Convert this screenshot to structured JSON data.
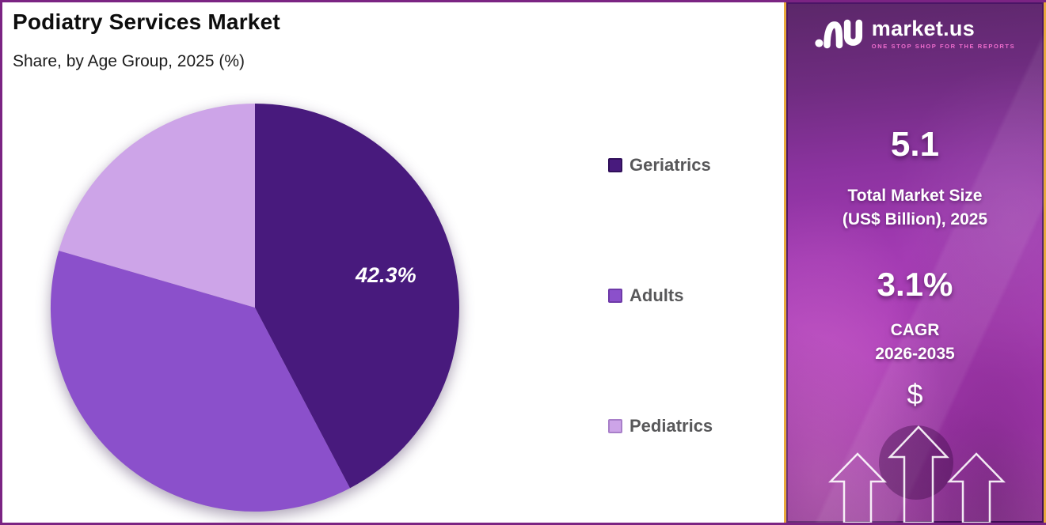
{
  "chart_data": {
    "type": "pie",
    "title": "Podiatry Services Market",
    "subtitle": "Share, by Age Group, 2025 (%)",
    "unit": "%",
    "start_angle_deg": 0,
    "direction": "clockwise",
    "legend_position": "right",
    "slices": [
      {
        "label": "Geriatrics",
        "value": 42.3,
        "data_label": "42.3%",
        "color": "#481A7D",
        "swatch_border": "#30105A"
      },
      {
        "label": "Adults",
        "value": 37.2,
        "data_label": "",
        "color": "#8B50CB",
        "swatch_border": "#6E3AA8"
      },
      {
        "label": "Pediatrics",
        "value": 20.5,
        "data_label": "",
        "color": "#CDA4E8",
        "swatch_border": "#A87FC9"
      }
    ]
  },
  "sidebar": {
    "brand": {
      "name": "market.us",
      "tagline": "ONE STOP SHOP FOR THE REPORTS"
    },
    "market_size": {
      "value": "5.1",
      "label": "Total Market Size\n(US$ Billion), 2025"
    },
    "cagr": {
      "value": "3.1%",
      "label": "CAGR\n2026-2035"
    },
    "dollar_symbol": "$",
    "accent_colors": {
      "sidebar_border_gold": "#E8A93C",
      "sidebar_inner_line": "#4A1566",
      "frame_border_purple": "#7B2483",
      "tagline_pink": "#F06ECF"
    }
  }
}
